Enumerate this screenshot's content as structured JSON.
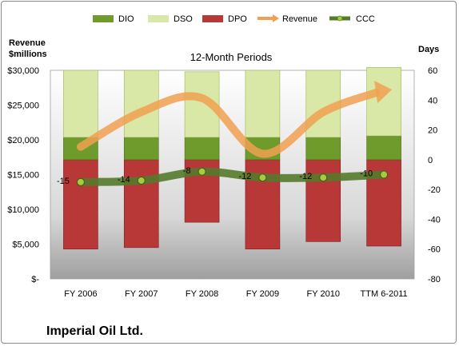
{
  "company_label": "Imperial Oil Ltd.",
  "chart_data": {
    "type": "bar",
    "title": "12-Month Periods",
    "ylabel_left": "Revenue $millions",
    "ylabel_right": "Days",
    "categories": [
      "FY 2006",
      "FY 2007",
      "FY 2008",
      "FY 2009",
      "FY 2010",
      "TTM 6-2011"
    ],
    "y_left": {
      "min": 0,
      "max": 30000,
      "ticks": [
        "$-",
        "$5,000",
        "$10,000",
        "$15,000",
        "$20,000",
        "$25,000",
        "$30,000"
      ]
    },
    "y_right": {
      "min": -80,
      "max": 60,
      "ticks": [
        "-80",
        "-60",
        "-40",
        "-20",
        "0",
        "20",
        "40",
        "60"
      ]
    },
    "series": [
      {
        "name": "DIO",
        "axis": "right",
        "color": "#6f9a2c",
        "values": [
          15,
          15,
          15,
          15,
          15,
          16
        ]
      },
      {
        "name": "DSO",
        "axis": "right",
        "color": "#d9e8a6",
        "values": [
          45,
          45,
          44,
          45,
          45,
          46
        ]
      },
      {
        "name": "DPO",
        "axis": "right",
        "color": "#b83737",
        "values": [
          60,
          59,
          42,
          60,
          55,
          58
        ]
      },
      {
        "name": "Revenue",
        "axis": "left",
        "color": "#f0a050",
        "values": [
          19000,
          24000,
          26000,
          18000,
          24000,
          27000
        ]
      },
      {
        "name": "CCC",
        "axis": "right",
        "color": "#557a2b",
        "values": [
          -15,
          -14,
          -8,
          -12,
          -12,
          -10
        ]
      }
    ],
    "legend_position": "top",
    "grid": false
  }
}
